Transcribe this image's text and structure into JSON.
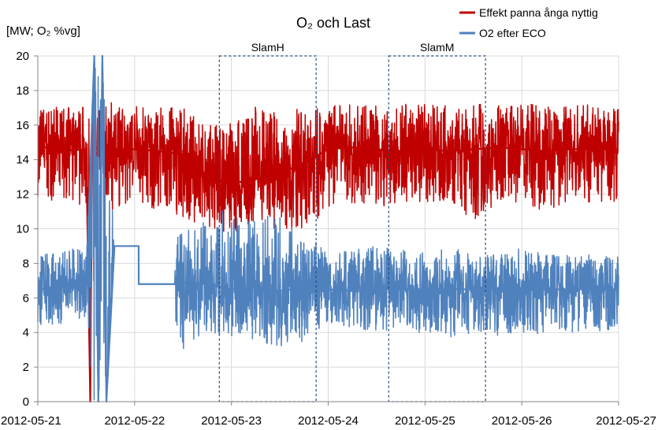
{
  "chart_data": {
    "type": "line",
    "title": "O₂ och Last",
    "ylabel": "[MW; O₂ %vg]",
    "xlabel": "",
    "ylim": [
      0,
      20
    ],
    "xlim": [
      "2012-05-21",
      "2012-05-27"
    ],
    "grid": true,
    "legend_position": "top-right",
    "x_tick_labels": [
      "2012-05-21",
      "2012-05-22",
      "2012-05-23",
      "2012-05-24",
      "2012-05-25",
      "2012-05-26",
      "2012-05-27"
    ],
    "y_tick_labels": [
      "0",
      "2",
      "4",
      "6",
      "8",
      "10",
      "12",
      "14",
      "16",
      "18",
      "20"
    ],
    "series": [
      {
        "name": "Effekt panna ånga nyttig",
        "color": "#c00000",
        "x": [
          "2012-05-21 00:00",
          "2012-05-21 06:00",
          "2012-05-21 12:00",
          "2012-05-21 13:00",
          "2012-05-21 13:30",
          "2012-05-21 14:00",
          "2012-05-21 18:00",
          "2012-05-22 00:00",
          "2012-05-22 06:00",
          "2012-05-22 12:00",
          "2012-05-22 18:00",
          "2012-05-23 00:00",
          "2012-05-23 06:00",
          "2012-05-23 12:00",
          "2012-05-23 18:00",
          "2012-05-24 00:00",
          "2012-05-24 06:00",
          "2012-05-24 12:00",
          "2012-05-24 18:00",
          "2012-05-25 00:00",
          "2012-05-25 06:00",
          "2012-05-25 12:00",
          "2012-05-25 18:00",
          "2012-05-26 00:00",
          "2012-05-26 06:00",
          "2012-05-26 12:00",
          "2012-05-26 18:00",
          "2012-05-27 00:00"
        ],
        "values": [
          14.8,
          14.5,
          14.6,
          0.0,
          14.5,
          14.7,
          14.6,
          14.6,
          14.5,
          14.3,
          13.0,
          12.6,
          12.9,
          13.2,
          13.8,
          14.6,
          14.7,
          14.6,
          14.5,
          14.6,
          14.5,
          14.6,
          14.7,
          14.6,
          14.5,
          14.6,
          14.6,
          14.6
        ],
        "band_min": [
          11.5,
          11.5,
          11.0,
          0.0,
          11.0,
          11.5,
          11.0,
          11.5,
          11.0,
          10.5,
          10.0,
          9.5,
          10.0,
          10.0,
          10.0,
          11.0,
          11.5,
          11.0,
          11.5,
          11.5,
          11.5,
          10.5,
          11.5,
          11.5,
          11.0,
          11.5,
          11.5,
          11.5
        ],
        "band_max": [
          17.2,
          17.0,
          17.2,
          16.8,
          17.0,
          17.2,
          17.3,
          17.2,
          17.1,
          17.0,
          16.0,
          16.2,
          17.2,
          16.8,
          17.0,
          17.2,
          17.2,
          17.2,
          17.2,
          17.2,
          17.2,
          17.2,
          17.2,
          17.2,
          17.2,
          17.2,
          17.2,
          17.2
        ]
      },
      {
        "name": "O2 efter ECO",
        "color": "#4f81bd",
        "x": [
          "2012-05-21 00:00",
          "2012-05-21 06:00",
          "2012-05-21 12:00",
          "2012-05-21 14:00",
          "2012-05-21 15:00",
          "2012-05-21 16:00",
          "2012-05-21 17:00",
          "2012-05-21 19:00",
          "2012-05-22 01:00",
          "2012-05-22 01:01",
          "2012-05-22 10:00",
          "2012-05-22 10:01",
          "2012-05-22 12:00",
          "2012-05-22 18:00",
          "2012-05-23 00:00",
          "2012-05-23 06:00",
          "2012-05-23 12:00",
          "2012-05-23 18:00",
          "2012-05-24 00:00",
          "2012-05-24 06:00",
          "2012-05-24 12:00",
          "2012-05-24 18:00",
          "2012-05-25 00:00",
          "2012-05-25 06:00",
          "2012-05-25 12:00",
          "2012-05-25 18:00",
          "2012-05-26 00:00",
          "2012-05-26 06:00",
          "2012-05-26 12:00",
          "2012-05-26 18:00",
          "2012-05-27 00:00"
        ],
        "values": [
          6.5,
          6.6,
          6.7,
          20.0,
          0.0,
          20.0,
          0.0,
          9.0,
          9.0,
          6.8,
          6.8,
          7.0,
          6.9,
          6.8,
          6.5,
          6.6,
          6.4,
          6.6,
          6.5,
          6.4,
          6.5,
          6.5,
          6.5,
          6.5,
          6.5,
          6.5,
          6.4,
          6.5,
          6.5,
          6.5,
          6.5
        ],
        "band_min": [
          4.2,
          4.5,
          4.8,
          0.0,
          0.0,
          0.0,
          0.0,
          9.0,
          9.0,
          6.8,
          6.8,
          4.5,
          3.0,
          4.0,
          3.6,
          3.5,
          3.2,
          3.4,
          4.5,
          4.2,
          4.0,
          3.8,
          4.0,
          3.5,
          4.0,
          3.8,
          4.0,
          3.8,
          4.0,
          4.0,
          4.2
        ],
        "band_max": [
          8.5,
          8.8,
          9.0,
          20.0,
          20.0,
          20.0,
          20.0,
          9.0,
          9.0,
          6.8,
          6.8,
          9.5,
          10.0,
          10.5,
          11.5,
          10.5,
          11.0,
          10.0,
          8.5,
          8.8,
          9.0,
          8.8,
          8.8,
          9.0,
          8.5,
          8.5,
          9.0,
          8.5,
          8.5,
          8.5,
          8.5
        ]
      }
    ],
    "annotations": [
      {
        "label": "SlamH",
        "shape": "dashed-rectangle",
        "x_start": "2012-05-22 21:00",
        "x_end": "2012-05-23 21:00",
        "y_start": 0,
        "y_end": 20
      },
      {
        "label": "SlamM",
        "shape": "dashed-rectangle",
        "x_start": "2012-05-24 15:00",
        "x_end": "2012-05-25 15:00",
        "y_start": 0,
        "y_end": 20
      }
    ]
  }
}
